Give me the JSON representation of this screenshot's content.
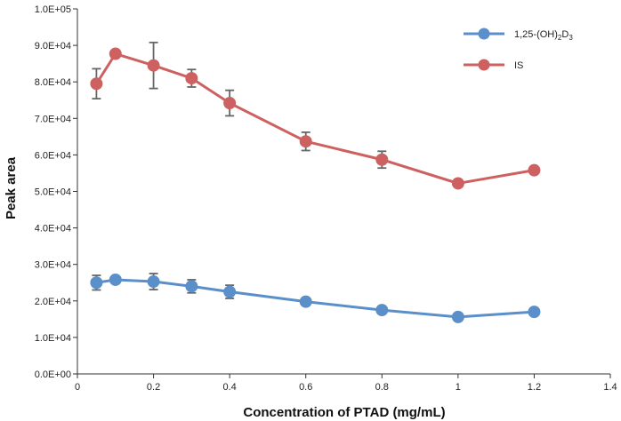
{
  "chart_data": {
    "type": "line",
    "title": "",
    "xlabel": "Concentration of PTAD (mg/mL)",
    "ylabel": "Peak area",
    "xlim": [
      0,
      1.4
    ],
    "ylim": [
      0,
      100000
    ],
    "x_ticks": [
      0,
      0.2,
      0.4,
      0.6,
      0.8,
      1,
      1.2,
      1.4
    ],
    "x_tick_labels": [
      "0",
      "0.2",
      "0.4",
      "0.6",
      "0.8",
      "1",
      "1.2",
      "1.4"
    ],
    "y_ticks": [
      0,
      10000,
      20000,
      30000,
      40000,
      50000,
      60000,
      70000,
      80000,
      90000,
      100000
    ],
    "y_tick_labels": [
      "0.0E+00",
      "1.0E+04",
      "2.0E+04",
      "3.0E+04",
      "4.0E+04",
      "5.0E+04",
      "6.0E+04",
      "7.0E+04",
      "8.0E+04",
      "9.0E+04",
      "1.0E+05"
    ],
    "grid": false,
    "legend_position": "top-right",
    "series": [
      {
        "name": "1,25-(OH)2D3",
        "legend_parts": {
          "prefix": "1,25-(OH)",
          "sub1": "2",
          "middle": "D",
          "sub2": "3"
        },
        "color": "#5b8fc9",
        "x": [
          0.05,
          0.1,
          0.2,
          0.3,
          0.4,
          0.6,
          0.8,
          1.0,
          1.2
        ],
        "values": [
          25000,
          25800,
          25300,
          24000,
          22500,
          19800,
          17500,
          15600,
          17000
        ],
        "errors": [
          2000,
          800,
          2200,
          1800,
          1800,
          0,
          0,
          0,
          0
        ]
      },
      {
        "name": "IS",
        "legend_parts": {
          "prefix": "IS",
          "sub1": "",
          "middle": "",
          "sub2": ""
        },
        "color": "#cd6060",
        "x": [
          0.05,
          0.1,
          0.2,
          0.3,
          0.4,
          0.6,
          0.8,
          1.0,
          1.2
        ],
        "values": [
          79500,
          87700,
          84500,
          81000,
          74200,
          63700,
          58700,
          52200,
          55800
        ],
        "errors": [
          4100,
          900,
          6300,
          2400,
          3500,
          2500,
          2300,
          0,
          0
        ]
      }
    ]
  }
}
